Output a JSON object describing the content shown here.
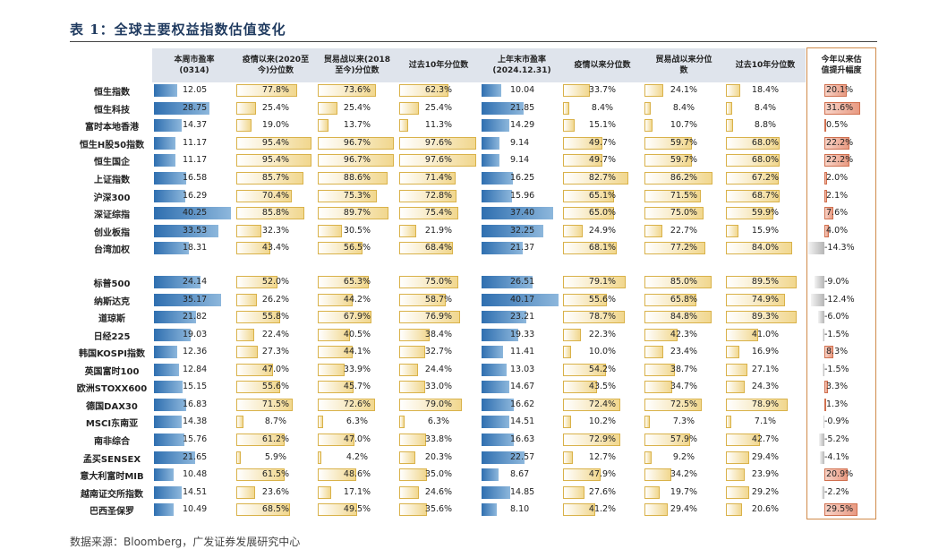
{
  "title": "表 1：全球主要权益指数估值变化",
  "source": "数据来源：Bloomberg，广发证券发展研究中心",
  "headers": [
    "本周市盈率\n(0314)",
    "疫情以来(2020至\n今)分位数",
    "贸易战以来(2018\n至今)分位数",
    "过去10年分位数",
    "上年末市盈率\n(2024.12.31)",
    "疫情以来分位数",
    "贸易战以来分位\n数",
    "过去10年分位数",
    "今年以来估\n值提升幅度"
  ],
  "colors": {
    "pe_bar": "#2f6fb0",
    "pct_bar": "#f1d78e",
    "positive_change": "#e89a82",
    "negative_change": "#b5b5b5",
    "highlight_border": "#d08a4a"
  },
  "rows": [
    {
      "name": "恒生指数",
      "pe": "12.05",
      "p20": "77.8%",
      "p18": "73.6%",
      "p10": "62.3%",
      "pe_ly": "10.04",
      "l20": "33.7%",
      "l18": "24.1%",
      "l10": "18.4%",
      "chg": "20.1%"
    },
    {
      "name": "恒生科技",
      "pe": "28.75",
      "p20": "25.4%",
      "p18": "25.4%",
      "p10": "25.4%",
      "pe_ly": "21.85",
      "l20": "8.4%",
      "l18": "8.4%",
      "l10": "8.4%",
      "chg": "31.6%"
    },
    {
      "name": "富时本地香港",
      "pe": "14.37",
      "p20": "19.0%",
      "p18": "13.7%",
      "p10": "11.3%",
      "pe_ly": "14.29",
      "l20": "15.1%",
      "l18": "10.7%",
      "l10": "8.8%",
      "chg": "0.5%"
    },
    {
      "name": "恒生H股50指数",
      "pe": "11.17",
      "p20": "95.4%",
      "p18": "96.7%",
      "p10": "97.6%",
      "pe_ly": "9.14",
      "l20": "49.7%",
      "l18": "59.7%",
      "l10": "68.0%",
      "chg": "22.2%"
    },
    {
      "name": "恒生国企",
      "pe": "11.17",
      "p20": "95.4%",
      "p18": "96.7%",
      "p10": "97.6%",
      "pe_ly": "9.14",
      "l20": "49.7%",
      "l18": "59.7%",
      "l10": "68.0%",
      "chg": "22.2%"
    },
    {
      "name": "上证指数",
      "pe": "16.58",
      "p20": "85.7%",
      "p18": "88.6%",
      "p10": "71.4%",
      "pe_ly": "16.25",
      "l20": "82.7%",
      "l18": "86.2%",
      "l10": "67.2%",
      "chg": "2.0%"
    },
    {
      "name": "沪深300",
      "pe": "16.29",
      "p20": "70.4%",
      "p18": "75.3%",
      "p10": "72.8%",
      "pe_ly": "15.96",
      "l20": "65.1%",
      "l18": "71.5%",
      "l10": "68.7%",
      "chg": "2.1%"
    },
    {
      "name": "深证综指",
      "pe": "40.25",
      "p20": "85.8%",
      "p18": "89.7%",
      "p10": "75.4%",
      "pe_ly": "37.40",
      "l20": "65.0%",
      "l18": "75.0%",
      "l10": "59.9%",
      "chg": "7.6%"
    },
    {
      "name": "创业板指",
      "pe": "33.53",
      "p20": "32.3%",
      "p18": "30.5%",
      "p10": "21.9%",
      "pe_ly": "32.25",
      "l20": "24.9%",
      "l18": "22.7%",
      "l10": "15.9%",
      "chg": "4.0%"
    },
    {
      "name": "台湾加权",
      "pe": "18.31",
      "p20": "43.4%",
      "p18": "56.5%",
      "p10": "68.4%",
      "pe_ly": "21.37",
      "l20": "68.1%",
      "l18": "77.2%",
      "l10": "84.0%",
      "chg": "-14.3%"
    },
    {
      "name": "标普500",
      "pe": "24.14",
      "p20": "52.0%",
      "p18": "65.3%",
      "p10": "75.0%",
      "pe_ly": "26.51",
      "l20": "79.1%",
      "l18": "85.0%",
      "l10": "89.5%",
      "chg": "-9.0%"
    },
    {
      "name": "纳斯达克",
      "pe": "35.17",
      "p20": "26.2%",
      "p18": "44.2%",
      "p10": "58.7%",
      "pe_ly": "40.17",
      "l20": "55.6%",
      "l18": "65.8%",
      "l10": "74.9%",
      "chg": "-12.4%"
    },
    {
      "name": "道琼斯",
      "pe": "21.82",
      "p20": "55.8%",
      "p18": "67.9%",
      "p10": "76.9%",
      "pe_ly": "23.21",
      "l20": "78.7%",
      "l18": "84.8%",
      "l10": "89.3%",
      "chg": "-6.0%"
    },
    {
      "name": "日经225",
      "pe": "19.03",
      "p20": "22.4%",
      "p18": "40.5%",
      "p10": "38.4%",
      "pe_ly": "19.33",
      "l20": "22.3%",
      "l18": "42.3%",
      "l10": "41.0%",
      "chg": "-1.5%"
    },
    {
      "name": "韩国KOSPI指数",
      "pe": "12.36",
      "p20": "27.3%",
      "p18": "44.1%",
      "p10": "32.7%",
      "pe_ly": "11.41",
      "l20": "10.0%",
      "l18": "23.4%",
      "l10": "16.9%",
      "chg": "8.3%"
    },
    {
      "name": "英国富时100",
      "pe": "12.84",
      "p20": "47.0%",
      "p18": "33.9%",
      "p10": "24.4%",
      "pe_ly": "13.03",
      "l20": "54.2%",
      "l18": "38.7%",
      "l10": "27.1%",
      "chg": "-1.5%"
    },
    {
      "name": "欧洲STOXX600",
      "pe": "15.15",
      "p20": "55.6%",
      "p18": "45.7%",
      "p10": "33.0%",
      "pe_ly": "14.67",
      "l20": "43.5%",
      "l18": "34.7%",
      "l10": "24.3%",
      "chg": "3.3%"
    },
    {
      "name": "德国DAX30",
      "pe": "16.83",
      "p20": "71.5%",
      "p18": "72.6%",
      "p10": "79.0%",
      "pe_ly": "16.62",
      "l20": "72.4%",
      "l18": "72.5%",
      "l10": "78.9%",
      "chg": "1.3%"
    },
    {
      "name": "MSCI东南亚",
      "pe": "14.38",
      "p20": "8.7%",
      "p18": "6.3%",
      "p10": "6.3%",
      "pe_ly": "14.51",
      "l20": "10.2%",
      "l18": "7.3%",
      "l10": "7.1%",
      "chg": "-0.9%"
    },
    {
      "name": "南非综合",
      "pe": "15.76",
      "p20": "61.2%",
      "p18": "47.0%",
      "p10": "33.8%",
      "pe_ly": "16.63",
      "l20": "72.9%",
      "l18": "57.9%",
      "l10": "42.7%",
      "chg": "-5.2%"
    },
    {
      "name": "孟买SENSEX",
      "pe": "21.65",
      "p20": "5.9%",
      "p18": "4.2%",
      "p10": "20.3%",
      "pe_ly": "22.57",
      "l20": "12.7%",
      "l18": "9.2%",
      "l10": "29.4%",
      "chg": "-4.1%"
    },
    {
      "name": "意大利富时MIB",
      "pe": "10.48",
      "p20": "61.5%",
      "p18": "48.6%",
      "p10": "35.0%",
      "pe_ly": "8.67",
      "l20": "47.9%",
      "l18": "34.2%",
      "l10": "23.9%",
      "chg": "20.9%"
    },
    {
      "name": "越南证交所指数",
      "pe": "14.51",
      "p20": "23.6%",
      "p18": "17.1%",
      "p10": "24.6%",
      "pe_ly": "14.85",
      "l20": "27.6%",
      "l18": "19.7%",
      "l10": "29.2%",
      "chg": "-2.2%"
    },
    {
      "name": "巴西圣保罗",
      "pe": "10.49",
      "p20": "68.5%",
      "p18": "49.5%",
      "p10": "35.6%",
      "pe_ly": "8.10",
      "l20": "41.2%",
      "l18": "29.4%",
      "l10": "20.6%",
      "chg": "29.5%"
    }
  ]
}
